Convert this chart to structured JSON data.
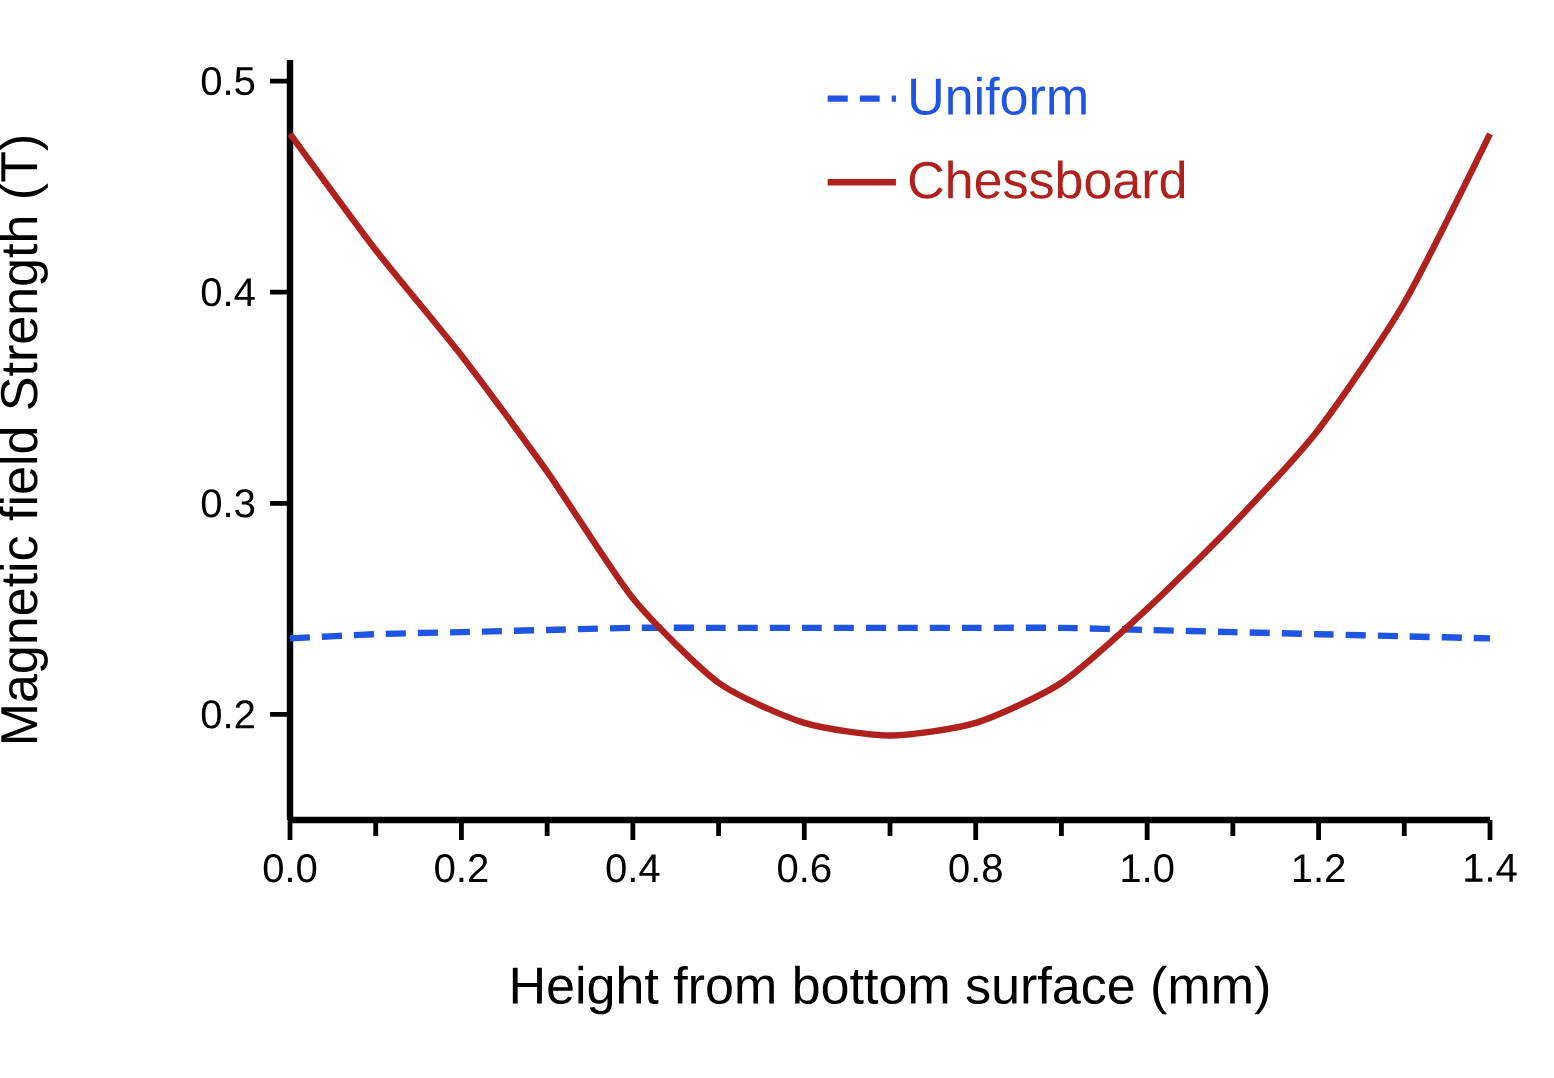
{
  "chart_data": {
    "type": "line",
    "xlabel": "Height from bottom surface (mm)",
    "ylabel": "Magnetic field Strength (T)",
    "x": [
      0,
      0.1,
      0.2,
      0.3,
      0.4,
      0.5,
      0.6,
      0.7,
      0.8,
      0.9,
      1.0,
      1.1,
      1.2,
      1.3,
      1.4
    ],
    "series": [
      {
        "name": "Uniform",
        "color": "#1f55e0",
        "line_style": "dashed",
        "values": [
          0.236,
          0.238,
          0.239,
          0.24,
          0.241,
          0.241,
          0.241,
          0.241,
          0.241,
          0.241,
          0.24,
          0.239,
          0.238,
          0.237,
          0.236
        ]
      },
      {
        "name": "Chessboard",
        "color": "#b0201c",
        "line_style": "solid",
        "values": [
          0.475,
          0.42,
          0.37,
          0.315,
          0.255,
          0.215,
          0.196,
          0.19,
          0.196,
          0.215,
          0.25,
          0.29,
          0.335,
          0.395,
          0.475
        ]
      }
    ],
    "xlim": [
      0,
      1.4
    ],
    "ylim": [
      0.15,
      0.51
    ],
    "xticks": [
      {
        "value": 0,
        "label": "0.0"
      },
      0.2,
      0.4,
      0.6,
      0.8,
      {
        "value": 1,
        "label": "1.0"
      },
      1.2,
      1.4
    ],
    "yticks": [
      0.2,
      0.3,
      0.4,
      0.5
    ],
    "legend": "top",
    "grid": false,
    "marker": "none"
  }
}
